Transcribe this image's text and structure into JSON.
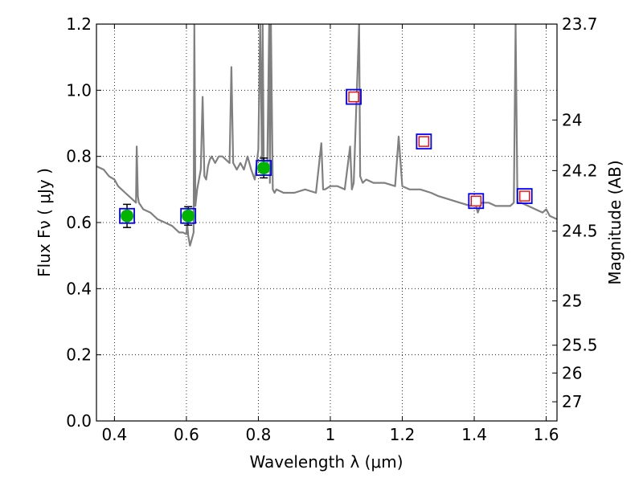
{
  "chart_data": {
    "type": "scatter",
    "xlabel": "Wavelength  λ (μm)",
    "ylabel": "Flux  Fν  ( μJy )",
    "y2label": "Magnitude (AB)",
    "xlim": [
      0.35,
      1.63
    ],
    "ylim": [
      0.0,
      1.2
    ],
    "grid": true,
    "x_ticks": [
      0.4,
      0.6,
      0.8,
      1.0,
      1.2,
      1.4,
      1.6
    ],
    "x_tick_labels": [
      "0.4",
      "0.6",
      "0.8",
      "1",
      "1.2",
      "1.4",
      "1.6"
    ],
    "y_ticks": [
      0.0,
      0.2,
      0.4,
      0.6,
      0.8,
      1.0,
      1.2
    ],
    "y_tick_labels": [
      "0.0",
      "0.2",
      "0.4",
      "0.6",
      "0.8",
      "1.0",
      "1.2"
    ],
    "y2_ticks": [
      {
        "label": "23.7",
        "flux": 1.2
      },
      {
        "label": "24",
        "flux": 0.91
      },
      {
        "label": "24.2",
        "flux": 0.757
      },
      {
        "label": "24.5",
        "flux": 0.574
      },
      {
        "label": "25",
        "flux": 0.363
      },
      {
        "label": "25.5",
        "flux": 0.229
      },
      {
        "label": "26",
        "flux": 0.145
      },
      {
        "label": "27",
        "flux": 0.058
      }
    ],
    "series": [
      {
        "type": "line",
        "color": "#808080",
        "x": [
          0.35,
          0.37,
          0.385,
          0.4,
          0.41,
          0.42,
          0.43,
          0.44,
          0.45,
          0.46,
          0.462,
          0.465,
          0.468,
          0.48,
          0.5,
          0.52,
          0.54,
          0.56,
          0.58,
          0.59,
          0.6,
          0.602,
          0.605,
          0.61,
          0.62,
          0.622,
          0.625,
          0.63,
          0.64,
          0.645,
          0.65,
          0.655,
          0.66,
          0.665,
          0.67,
          0.68,
          0.69,
          0.7,
          0.72,
          0.725,
          0.73,
          0.74,
          0.75,
          0.76,
          0.77,
          0.78,
          0.79,
          0.8,
          0.805,
          0.81,
          0.812,
          0.815,
          0.82,
          0.825,
          0.83,
          0.832,
          0.835,
          0.84,
          0.845,
          0.85,
          0.87,
          0.9,
          0.93,
          0.96,
          0.975,
          0.98,
          0.985,
          1.0,
          1.02,
          1.04,
          1.055,
          1.06,
          1.065,
          1.08,
          1.083,
          1.09,
          1.1,
          1.12,
          1.15,
          1.18,
          1.19,
          1.2,
          1.22,
          1.25,
          1.28,
          1.3,
          1.33,
          1.36,
          1.39,
          1.4,
          1.41,
          1.42,
          1.44,
          1.46,
          1.48,
          1.5,
          1.51,
          1.515,
          1.52,
          1.53,
          1.55,
          1.57,
          1.59,
          1.6,
          1.61,
          1.63
        ],
        "y": [
          0.77,
          0.76,
          0.74,
          0.73,
          0.71,
          0.7,
          0.69,
          0.68,
          0.67,
          0.66,
          0.83,
          0.68,
          0.66,
          0.64,
          0.63,
          0.61,
          0.6,
          0.59,
          0.57,
          0.57,
          0.565,
          0.6,
          0.56,
          0.53,
          0.57,
          1.2,
          0.65,
          0.7,
          0.76,
          0.98,
          0.74,
          0.73,
          0.77,
          0.79,
          0.8,
          0.78,
          0.8,
          0.8,
          0.78,
          1.07,
          0.78,
          0.76,
          0.78,
          0.76,
          0.8,
          0.76,
          0.73,
          0.82,
          1.2,
          0.79,
          1.2,
          0.76,
          0.77,
          0.78,
          1.2,
          0.72,
          1.2,
          0.7,
          0.69,
          0.7,
          0.69,
          0.69,
          0.7,
          0.69,
          0.84,
          0.7,
          0.7,
          0.71,
          0.71,
          0.7,
          0.83,
          0.7,
          0.72,
          1.2,
          0.74,
          0.72,
          0.73,
          0.72,
          0.72,
          0.71,
          0.86,
          0.71,
          0.7,
          0.7,
          0.69,
          0.68,
          0.67,
          0.66,
          0.65,
          0.67,
          0.63,
          0.66,
          0.66,
          0.65,
          0.65,
          0.65,
          0.66,
          1.2,
          0.66,
          0.66,
          0.65,
          0.64,
          0.63,
          0.64,
          0.62,
          0.61
        ]
      },
      {
        "type": "scatter",
        "marker": "circle",
        "color": "#00b400",
        "x": [
          0.435,
          0.605,
          0.815
        ],
        "y": [
          0.62,
          0.62,
          0.765
        ],
        "yerr": [
          0.035,
          0.028,
          0.03
        ]
      },
      {
        "type": "scatter",
        "marker": "square",
        "color": "#0000ff",
        "x": [
          0.435,
          0.605,
          0.815,
          1.065,
          1.26,
          1.405,
          1.54
        ],
        "y": [
          0.62,
          0.62,
          0.765,
          0.98,
          0.845,
          0.665,
          0.68
        ]
      },
      {
        "type": "scatter",
        "marker": "square-open",
        "color": "#ff0000",
        "x": [
          1.065,
          1.26,
          1.405,
          1.54
        ],
        "y": [
          0.98,
          0.845,
          0.665,
          0.68
        ]
      }
    ]
  }
}
